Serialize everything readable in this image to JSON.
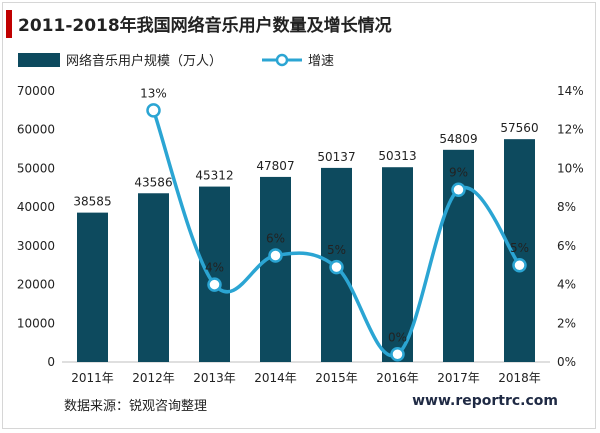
{
  "title": "2011-2018年我国网络音乐用户数量及增长情况",
  "source": "数据来源：锐观咨询整理",
  "website": "www.reportrc.com",
  "colors": {
    "bar": "#0d4a5e",
    "line": "#2ba5d3",
    "title_accent": "#c00000"
  },
  "chart_data": {
    "type": "bar",
    "categories": [
      "2011年",
      "2012年",
      "2013年",
      "2014年",
      "2015年",
      "2016年",
      "2017年",
      "2018年"
    ],
    "series": [
      {
        "name": "网络音乐用户规模（万人）",
        "type": "bar",
        "axis": "left",
        "values": [
          38585,
          43586,
          45312,
          47807,
          50137,
          50313,
          54809,
          57560
        ]
      },
      {
        "name": "增速",
        "type": "line",
        "axis": "right",
        "values": [
          null,
          13,
          4,
          5.5,
          4.9,
          0.4,
          8.9,
          5.0
        ],
        "labels": [
          "",
          "13%",
          "4%",
          "6%",
          "5%",
          "0%",
          "9%",
          "5%"
        ]
      }
    ],
    "left_axis": {
      "min": 0,
      "max": 70000,
      "ticks": [
        "0",
        "10000",
        "20000",
        "30000",
        "40000",
        "50000",
        "60000",
        "70000"
      ]
    },
    "right_axis": {
      "min": 0,
      "max": 14,
      "ticks": [
        "0%",
        "2%",
        "4%",
        "6%",
        "8%",
        "10%",
        "12%",
        "14%"
      ]
    },
    "legend_position": "top-left",
    "grid": false
  }
}
